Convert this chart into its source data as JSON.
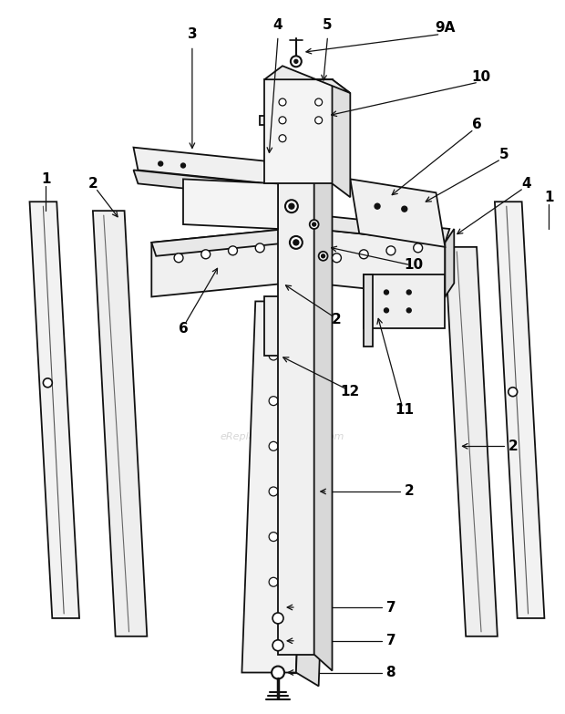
{
  "background_color": "#ffffff",
  "watermark": "eReplacementParts.com",
  "fig_width": 6.2,
  "fig_height": 7.83,
  "line_color": "#111111",
  "text_color": "#000000",
  "fill_light": "#f0f0f0",
  "fill_mid": "#d8d8d8",
  "fill_dark": "#b0b0b0"
}
